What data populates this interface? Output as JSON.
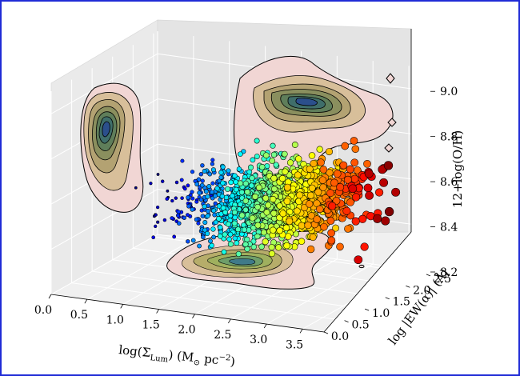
{
  "chart_data": {
    "type": "scatter",
    "title": "",
    "axes": {
      "x": {
        "label": "log(Σ",
        "label_sub": "Lum",
        "label_rest": ") (M",
        "label_sun": "⊙",
        "label_unit": " pc",
        "label_exp": "−2",
        "label_end": ")",
        "range": [
          0.0,
          3.8
        ],
        "ticks": [
          "0.0",
          "0.5",
          "1.0",
          "1.5",
          "2.0",
          "2.5",
          "3.0",
          "3.5"
        ]
      },
      "y": {
        "label": "log |EW(α)| (Å)",
        "range": [
          0.0,
          2.6
        ],
        "ticks": [
          "0.0",
          "0.5",
          "1.0",
          "1.5",
          "2.0",
          "2.5"
        ]
      },
      "z": {
        "label": "12+log(O/H)",
        "range": [
          8.2,
          9.1
        ],
        "ticks": [
          "8.2",
          "8.4",
          "8.6",
          "8.8",
          "9.0"
        ]
      }
    },
    "color_encoding": "x",
    "colormap": "jet",
    "grid": true,
    "legend": "none",
    "projections": [
      "x-z wall (left)",
      "y-z wall (back)",
      "x-y floor"
    ],
    "series": [
      {
        "points_summary": "dense cloud of ~2000 galaxies; x spans about 0.5 to 3.7, y about 1.0 to 2.5, z about 8.35 to 8.9",
        "x_range": [
          0.5,
          3.7
        ],
        "y_range": [
          1.0,
          2.5
        ],
        "z_range": [
          8.35,
          8.9
        ]
      }
    ]
  }
}
